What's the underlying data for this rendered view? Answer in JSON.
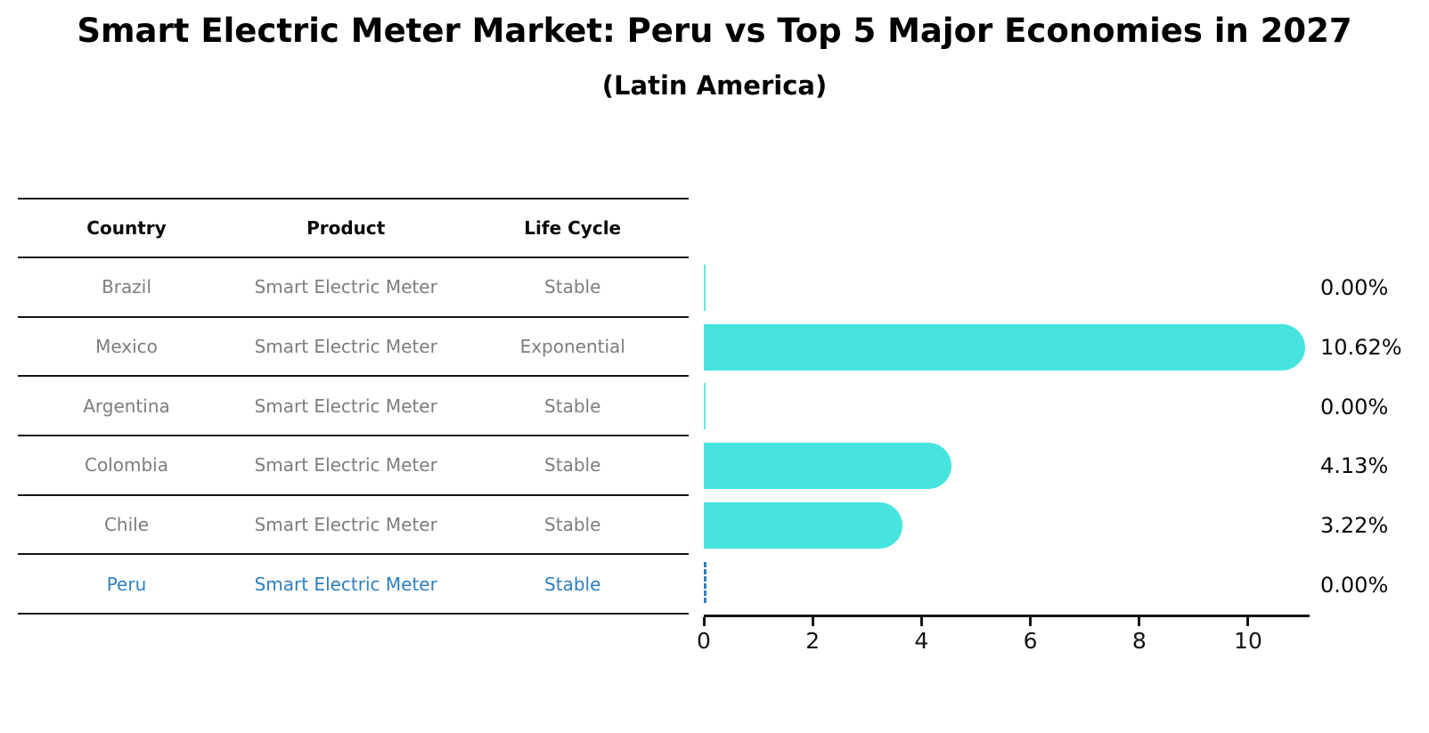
{
  "title": "Smart Electric Meter Market: Peru vs Top 5 Major Economies in 2027",
  "subtitle": "(Latin America)",
  "table": {
    "headers": [
      "Country",
      "Product",
      "Life Cycle"
    ],
    "rows": [
      {
        "country": "Brazil",
        "product": "Smart Electric Meter",
        "life_cycle": "Stable",
        "highlighted": false
      },
      {
        "country": "Mexico",
        "product": "Smart Electric Meter",
        "life_cycle": "Exponential",
        "highlighted": false
      },
      {
        "country": "Argentina",
        "product": "Smart Electric Meter",
        "life_cycle": "Stable",
        "highlighted": false
      },
      {
        "country": "Colombia",
        "product": "Smart Electric Meter",
        "life_cycle": "Stable",
        "highlighted": false
      },
      {
        "country": "Chile",
        "product": "Smart Electric Meter",
        "life_cycle": "Stable",
        "highlighted": false
      },
      {
        "country": "Peru",
        "product": "Smart Electric Meter",
        "life_cycle": "Stable",
        "highlighted": true
      }
    ]
  },
  "chart_data": {
    "type": "bar",
    "orientation": "horizontal",
    "title": "Smart Electric Meter Market: Peru vs Top 5 Major Economies in 2027 (Latin America)",
    "categories": [
      "Brazil",
      "Mexico",
      "Argentina",
      "Colombia",
      "Chile",
      "Peru"
    ],
    "values": [
      0.0,
      10.62,
      0.0,
      4.13,
      3.22,
      0.0
    ],
    "value_labels": [
      "0.00%",
      "10.62%",
      "0.00%",
      "4.13%",
      "3.22%",
      "0.00%"
    ],
    "x_ticks": [
      0,
      2,
      4,
      6,
      8,
      10
    ],
    "xlim": [
      0,
      11.13
    ],
    "xlabel": "",
    "ylabel": "",
    "grid": false,
    "legend": false,
    "bar_color": "#47e4df",
    "highlight_color": "#2d7fc0",
    "highlighted_category": "Peru",
    "text_color": "#7d7d7d",
    "axis_color": "#141414"
  }
}
